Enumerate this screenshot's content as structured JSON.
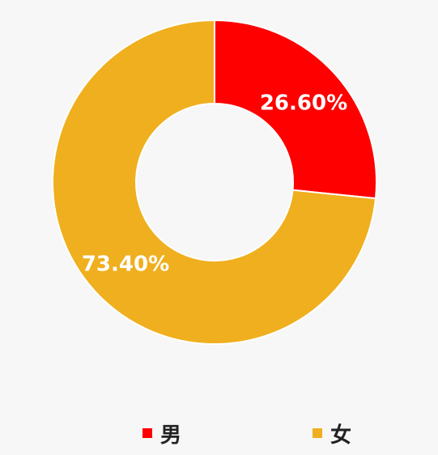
{
  "chart_data": {
    "type": "pie",
    "donut": true,
    "labels": [
      "男",
      "女"
    ],
    "values": [
      26.6,
      73.4
    ],
    "value_labels": [
      "26.60%",
      "73.40%"
    ],
    "colors": [
      "#ff0000",
      "#f0af1e"
    ],
    "legend_position": "bottom",
    "title": ""
  }
}
